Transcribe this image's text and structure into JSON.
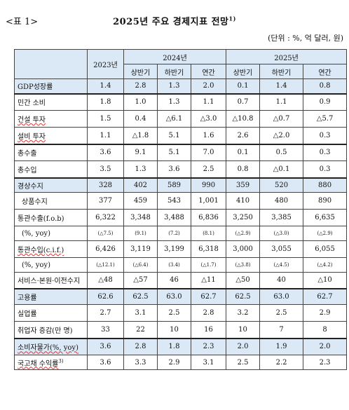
{
  "header": {
    "tag": "<표 1>",
    "title": "2025년 주요 경제지표 전망",
    "title_sup": "1)",
    "unit": "(단위 : %, 억 달러, 원)"
  },
  "columns": {
    "y2023": "2023년",
    "y2024": "2024년",
    "y2025": "2025년",
    "h1": "상반기",
    "h2": "하반기",
    "annual": "연간"
  },
  "rows": [
    {
      "label": "GDP성장률",
      "v": [
        "1.4",
        "2.8",
        "1.3",
        "2.0",
        "0.1",
        "1.4",
        "0.8"
      ]
    },
    {
      "label": "민간 소비",
      "v": [
        "1.8",
        "1.0",
        "1.3",
        "1.1",
        "0.7",
        "1.1",
        "0.9"
      ]
    },
    {
      "label": "건설 투자",
      "v": [
        "1.5",
        "0.4",
        "△6.1",
        "△3.0",
        "△10.8",
        "△0.7",
        "△5.7"
      ]
    },
    {
      "label": "설비 투자",
      "v": [
        "1.1",
        "△1.8",
        "5.1",
        "1.6",
        "2.6",
        "△2.0",
        "0.3"
      ]
    },
    {
      "label": "총수출",
      "v": [
        "3.6",
        "9.1",
        "5.1",
        "7.0",
        "0.1",
        "0.5",
        "0.3"
      ]
    },
    {
      "label": "총수입",
      "v": [
        "3.5",
        "1.3",
        "3.6",
        "2.5",
        "0.8",
        "△0.1",
        "0.3"
      ]
    },
    {
      "label": "경상수지",
      "v": [
        "328",
        "402",
        "589",
        "990",
        "359",
        "520",
        "880"
      ]
    },
    {
      "label": "상품수지",
      "v": [
        "377",
        "459",
        "543",
        "1,001",
        "410",
        "480",
        "890"
      ]
    },
    {
      "label": "통관수출(f.o.b)",
      "v": [
        "6,322",
        "3,348",
        "3,488",
        "6,836",
        "3,250",
        "3,385",
        "6,635"
      ]
    },
    {
      "label": "(%, yoy)",
      "v": [
        "(△7.5)",
        "(9.1)",
        "(7.2)",
        "(8.1)",
        "(△2.9)",
        "(△3.0)",
        "(△2.9)"
      ]
    },
    {
      "label": "통관수입(c.i.f.)",
      "v": [
        "6,426",
        "3,119",
        "3,199",
        "6,318",
        "3,000",
        "3,055",
        "6,055"
      ]
    },
    {
      "label": "(%, yoy)",
      "v": [
        "(△12.1)",
        "(△6.4)",
        "(3.4)",
        "(△1.7)",
        "(△3.8)",
        "(△4.5)",
        "(△4.2)"
      ]
    },
    {
      "label": "서비스·본원·이전수지",
      "v": [
        "△48",
        "△57",
        "46",
        "△11",
        "△50",
        "40",
        "△10"
      ]
    },
    {
      "label": "고용률",
      "v": [
        "62.6",
        "62.5",
        "63.0",
        "62.7",
        "62.5",
        "63.0",
        "62.7"
      ]
    },
    {
      "label": "실업률",
      "v": [
        "2.7",
        "3.1",
        "2.5",
        "2.8",
        "3.2",
        "2.5",
        "2.9"
      ]
    },
    {
      "label": "취업자 증감(만 명)",
      "v": [
        "33",
        "22",
        "10",
        "16",
        "10",
        "7",
        "8"
      ]
    },
    {
      "label": "소비자물가(%, yoy)",
      "v": [
        "3.6",
        "2.8",
        "1.8",
        "2.3",
        "2.0",
        "1.9",
        "2.0"
      ]
    },
    {
      "label": "국고채 수익률",
      "label_sup": "3)",
      "v": [
        "3.6",
        "3.3",
        "2.9",
        "3.1",
        "2.5",
        "2.2",
        "2.3"
      ]
    }
  ]
}
